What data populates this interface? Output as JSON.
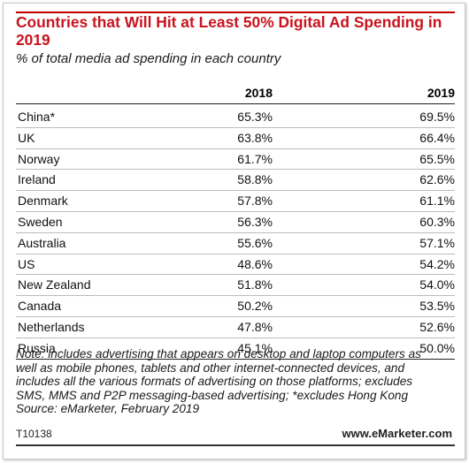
{
  "title_line1": "Countries that Will Hit at Least 50% Digital Ad Spending in",
  "title_line2": "2019",
  "subtitle": "% of total media ad spending in each country",
  "chart_data": {
    "type": "table",
    "columns": [
      "2018",
      "2019"
    ],
    "rows": [
      {
        "country": "China*",
        "v2018": "65.3%",
        "v2019": "69.5%"
      },
      {
        "country": "UK",
        "v2018": "63.8%",
        "v2019": "66.4%"
      },
      {
        "country": "Norway",
        "v2018": "61.7%",
        "v2019": "65.5%"
      },
      {
        "country": "Ireland",
        "v2018": "58.8%",
        "v2019": "62.6%"
      },
      {
        "country": "Denmark",
        "v2018": "57.8%",
        "v2019": "61.1%"
      },
      {
        "country": "Sweden",
        "v2018": "56.3%",
        "v2019": "60.3%"
      },
      {
        "country": "Australia",
        "v2018": "55.6%",
        "v2019": "57.1%"
      },
      {
        "country": "US",
        "v2018": "48.6%",
        "v2019": "54.2%"
      },
      {
        "country": "New Zealand",
        "v2018": "51.8%",
        "v2019": "54.0%"
      },
      {
        "country": "Canada",
        "v2018": "50.2%",
        "v2019": "53.5%"
      },
      {
        "country": "Netherlands",
        "v2018": "47.8%",
        "v2019": "52.6%"
      },
      {
        "country": "Russia",
        "v2018": "45.1%",
        "v2019": "50.0%"
      }
    ]
  },
  "note_lines": [
    "Note: includes advertising that appears on desktop and laptop computers as",
    "well as mobile phones, tablets and other internet-connected devices, and",
    "includes all the various formats of advertising on those platforms; excludes",
    "SMS, MMS and P2P messaging-based advertising; *excludes Hong Kong",
    "Source: eMarketer, February 2019"
  ],
  "chart_code": "T10138",
  "brand": "www.eMarketer.com",
  "colors": {
    "title": "#c8141e",
    "accent_bar": "#c00000"
  }
}
